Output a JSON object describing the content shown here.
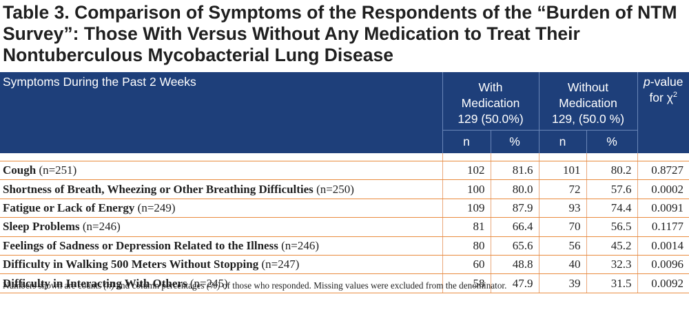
{
  "title": "Table 3. Comparison of Symptoms of the Respondents of the “Burden of NTM Survey”: Those With Versus Without Any Medication to Treat Their Nontuberculous Mycobacterial Lung Disease",
  "header": {
    "symptoms": "Symptoms During the Past 2 Weeks",
    "with_line1": "With",
    "with_line2": "Medication",
    "with_line3": "129 (50.0%)",
    "without_line1": "Without",
    "without_line2": "Medication",
    "without_line3": "129, (50.0 %)",
    "p_value_italic": "p",
    "p_value_rest": "-value",
    "p_value_line2": "for χ",
    "p_value_sup": "2",
    "n": "n",
    "pct": "%"
  },
  "rows": [
    {
      "name": "Cough",
      "count": "(n=251)",
      "with_n": "102",
      "with_pct": "81.6",
      "without_n": "101",
      "without_pct": "80.2",
      "p": "0.8727"
    },
    {
      "name": "Shortness of Breath, Wheezing or Other Breathing Difficulties",
      "count": "(n=250)",
      "with_n": "100",
      "with_pct": "80.0",
      "without_n": "72",
      "without_pct": "57.6",
      "p": "0.0002"
    },
    {
      "name": "Fatigue or Lack of Energy",
      "count": "(n=249)",
      "with_n": "109",
      "with_pct": "87.9",
      "without_n": "93",
      "without_pct": "74.4",
      "p": "0.0091"
    },
    {
      "name": "Sleep Problems",
      "count": "(n=246)",
      "with_n": "81",
      "with_pct": "66.4",
      "without_n": "70",
      "without_pct": "56.5",
      "p": "0.1177"
    },
    {
      "name": "Feelings of Sadness or Depression Related to the Illness",
      "count": "(n=246)",
      "with_n": "80",
      "with_pct": "65.6",
      "without_n": "56",
      "without_pct": "45.2",
      "p": "0.0014"
    },
    {
      "name": "Difficulty in Walking 500 Meters Without Stopping",
      "count": "(n=247)",
      "with_n": "60",
      "with_pct": "48.8",
      "without_n": "40",
      "without_pct": "32.3",
      "p": "0.0096"
    },
    {
      "name": "Difficulty in Interacting With Others",
      "count": "(n=245)",
      "with_n": "58",
      "with_pct": "47.9",
      "without_n": "39",
      "without_pct": "31.5",
      "p": "0.0092"
    }
  ],
  "footnote": {
    "part1": "Numbers shown are counts ",
    "n_italic": "(n)",
    "part2": " and column percentages ",
    "pct_italic": "(%)",
    "part3": " of those who responded. Missing values were excluded from the denominator."
  },
  "colors": {
    "header_bg": "#1e3f7a",
    "row_rule": "#e98a3c",
    "text": "#1f1f1f"
  }
}
